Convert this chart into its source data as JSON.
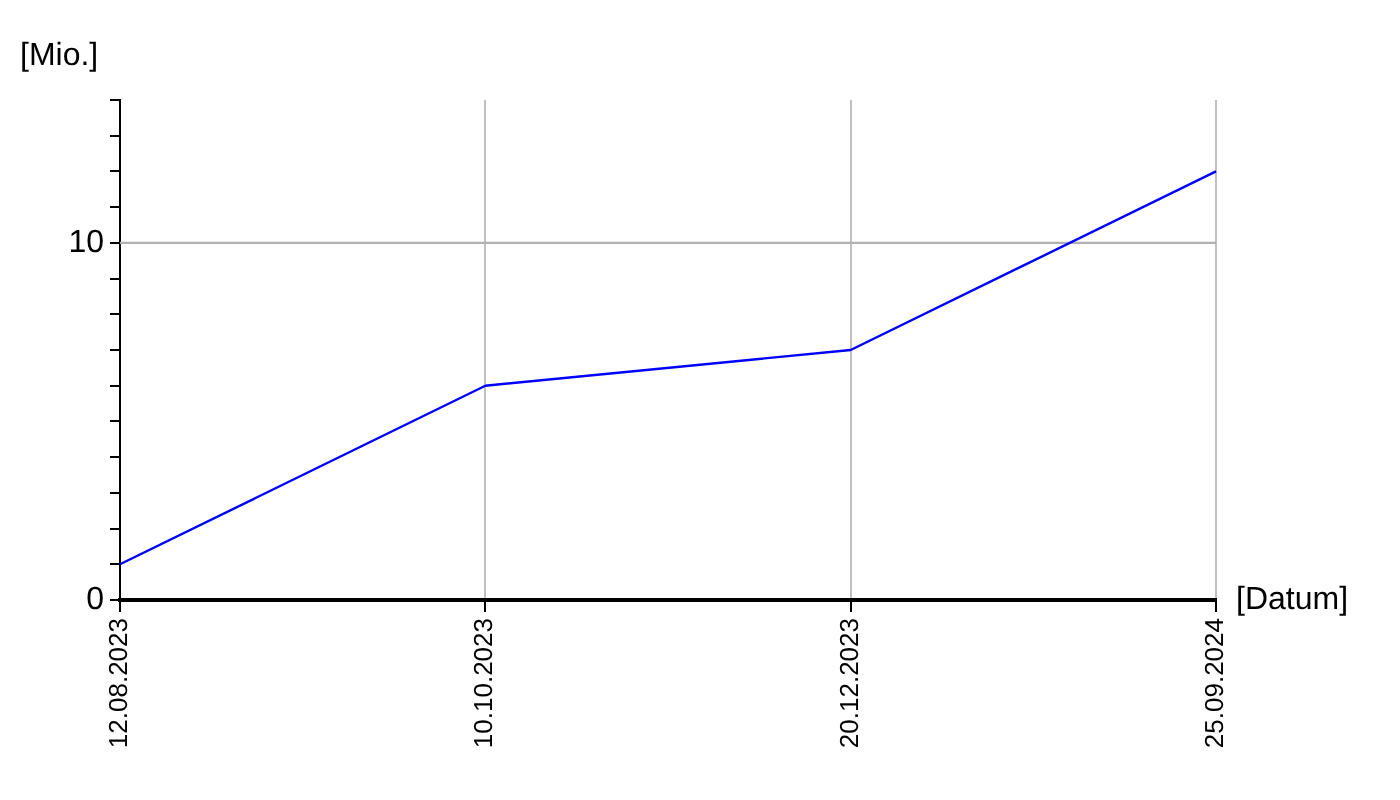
{
  "chart_data": {
    "type": "line",
    "xlabel": "[Datum]",
    "ylabel": "[Mio.]",
    "categories": [
      "12.08.2023",
      "10.10.2023",
      "20.12.2023",
      "25.09.2024"
    ],
    "series": [
      {
        "color": "#0000ff",
        "values": [
          1,
          6,
          7,
          12
        ]
      }
    ],
    "ylim": [
      0,
      14
    ],
    "yticks": [
      0,
      {
        "value": 1,
        "label": null
      },
      {
        "value": 2,
        "label": null
      },
      {
        "value": 3,
        "label": null
      },
      {
        "value": 4,
        "label": null
      },
      {
        "value": 5,
        "label": null
      },
      {
        "value": 6,
        "label": null
      },
      {
        "value": 7,
        "label": null
      },
      {
        "value": 8,
        "label": null
      },
      {
        "value": 9,
        "label": null
      },
      10,
      {
        "value": 11,
        "label": null
      },
      {
        "value": 12,
        "label": null
      },
      {
        "value": 13,
        "label": null
      },
      {
        "value": 14,
        "label": null
      }
    ],
    "grid": "x",
    "ref_lines": [
      {
        "axis": "y",
        "value": 10,
        "color": "#b0b0b0"
      }
    ],
    "legend": false,
    "marker": "none",
    "line_style": "solid"
  }
}
